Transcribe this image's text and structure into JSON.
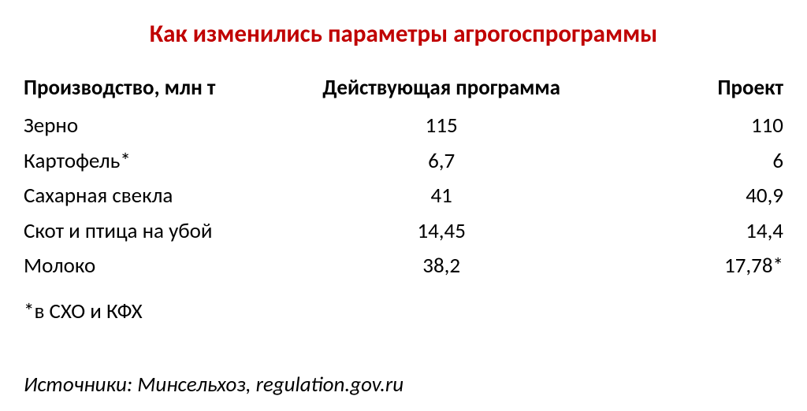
{
  "title": "Как изменились параметры агрогоспрограммы",
  "title_color": "#c00000",
  "title_fontsize": 31,
  "body_color": "#000000",
  "body_fontsize": 27,
  "footnote_fontsize": 27,
  "sources_fontsize": 27,
  "background_color": "#ffffff",
  "table": {
    "columns": [
      {
        "key": "product",
        "label": "Производство, млн т",
        "width": "34%",
        "align": "left"
      },
      {
        "key": "current",
        "label": "Действующая программа",
        "width": "42%",
        "align": "center"
      },
      {
        "key": "project",
        "label": "Проект",
        "width": "24%",
        "align": "right"
      }
    ],
    "rows": [
      {
        "product": "Зерно",
        "current": "115",
        "project": "110"
      },
      {
        "product": "Картофель*",
        "current": "6,7",
        "project": "6"
      },
      {
        "product": "Сахарная свекла",
        "current": "41",
        "project": "40,9"
      },
      {
        "product": "Скот и птица на убой",
        "current": "14,45",
        "project": "14,4"
      },
      {
        "product": "Молоко",
        "current": "38,2",
        "project": "17,78*"
      }
    ]
  },
  "footnote": "*в СХО и КФХ",
  "sources": "Источники: Минсельхоз, regulation.gov.ru"
}
